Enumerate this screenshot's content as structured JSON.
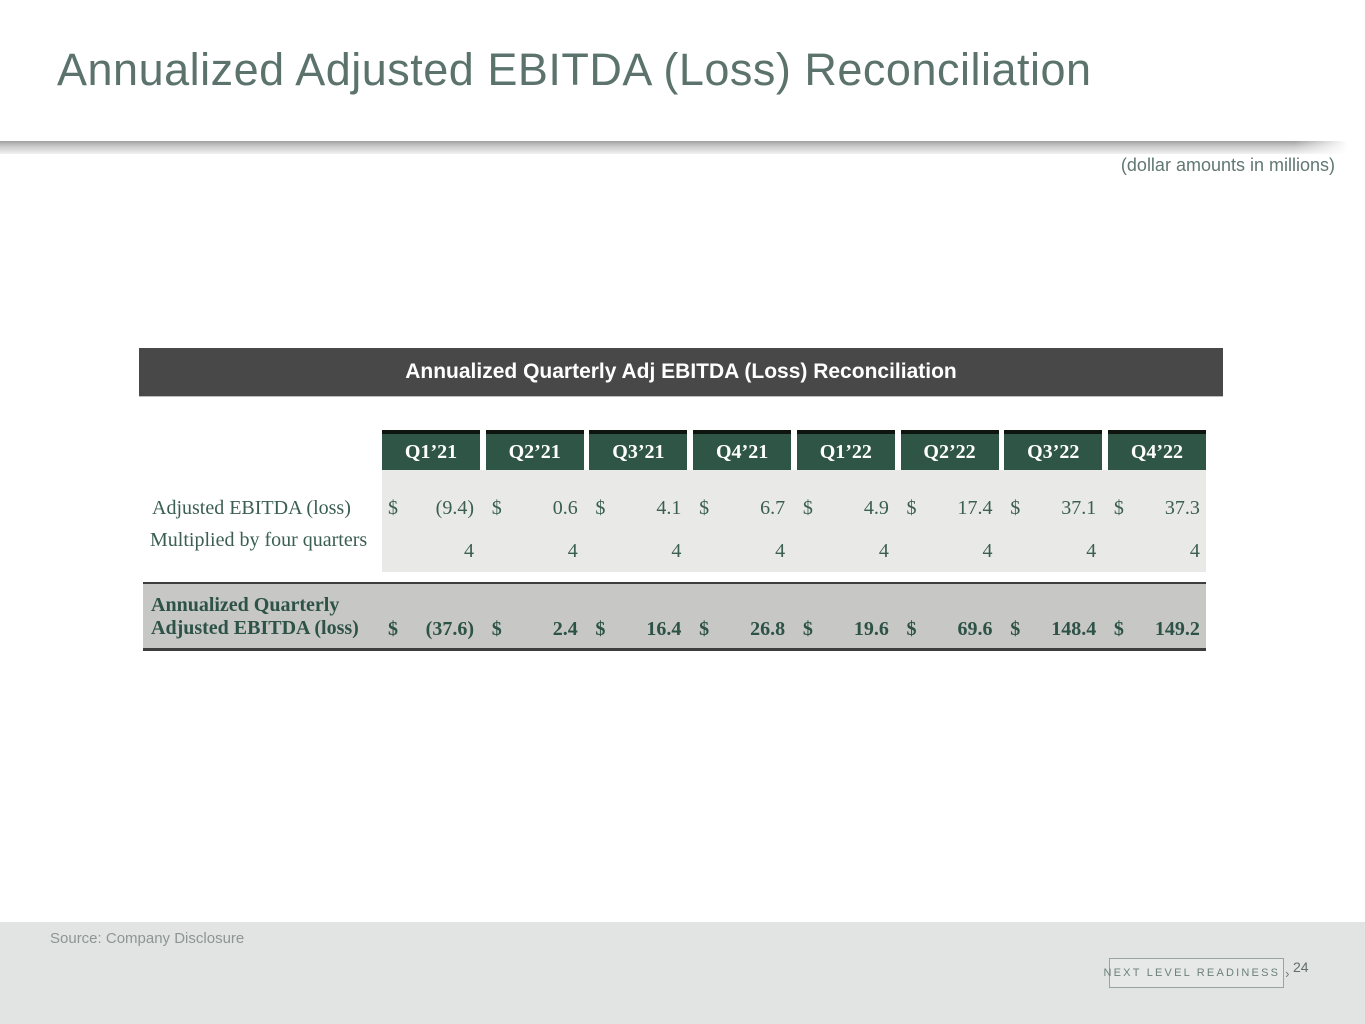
{
  "slide": {
    "title": "Annualized Adjusted EBITDA (Loss) Reconciliation",
    "units_note": "(dollar amounts in millions)",
    "source": "Source: Company Disclosure",
    "page_number": "24",
    "footer_badge_label": "NEXT LEVEL READINESS",
    "footer_badge_chevron": "›"
  },
  "colors": {
    "title_text": "#5b736c",
    "table_header_bar_bg": "#484848",
    "quarter_header_bg": "#2f5547",
    "data_area_bg": "#e9e9e7",
    "total_row_bg": "#c7c7c5",
    "data_text_green": "#3a5e51",
    "footer_bg": "#e2e4e3"
  },
  "table": {
    "title": "Annualized Quarterly Adj EBITDA (Loss) Reconciliation",
    "quarters": [
      "Q1’21",
      "Q2’21",
      "Q3’21",
      "Q4’21",
      "Q1’22",
      "Q2’22",
      "Q3’22",
      "Q4’22"
    ],
    "rows": [
      {
        "label": "Adjusted EBITDA (loss)",
        "currency": "$",
        "values": [
          "(9.4)",
          "0.6",
          "4.1",
          "6.7",
          "4.9",
          "17.4",
          "37.1",
          "37.3"
        ]
      },
      {
        "label": "Multiplied by four quarters",
        "currency": "",
        "values": [
          "4",
          "4",
          "4",
          "4",
          "4",
          "4",
          "4",
          "4"
        ]
      }
    ],
    "total_row": {
      "label_line1": "Annualized Quarterly",
      "label_line2": "Adjusted EBITDA (loss)",
      "currency": "$",
      "values": [
        "(37.6)",
        "2.4",
        "16.4",
        "26.8",
        "19.6",
        "69.6",
        "148.4",
        "149.2"
      ]
    }
  }
}
